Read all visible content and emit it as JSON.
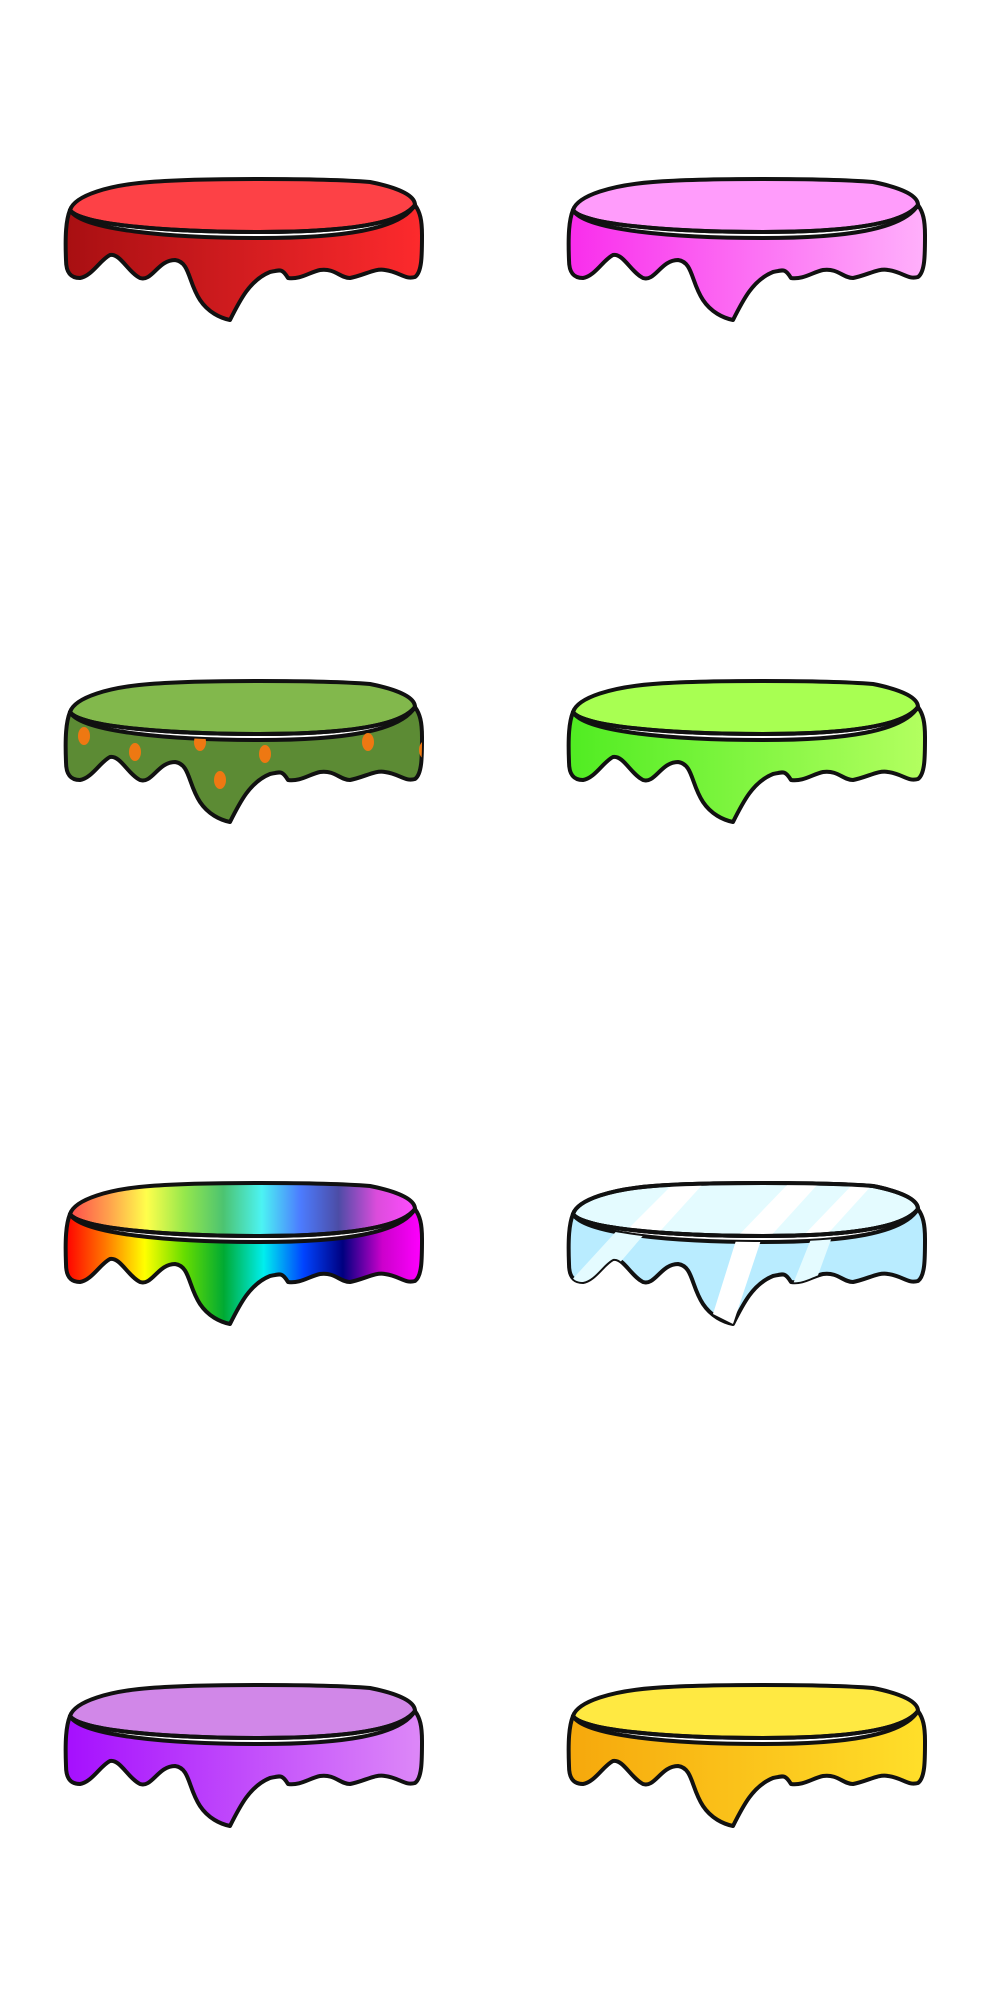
{
  "background": "#ffffff",
  "outline_color": "#111111",
  "items": [
    {
      "name": "tablecloth-red",
      "pattern": "solid",
      "top": "#fd4146",
      "skirt": [
        "#a80f12",
        "#fd2a2d"
      ]
    },
    {
      "name": "tablecloth-pink",
      "pattern": "solid",
      "top": "#ff9cfb",
      "skirt": [
        "#f92dec",
        "#ffb0fb"
      ]
    },
    {
      "name": "tablecloth-green-polka-dot",
      "pattern": "dots",
      "top": "#82b84c",
      "skirt": [
        "#5c8b34",
        "#5c8b34"
      ],
      "dot_color": "#ee7812"
    },
    {
      "name": "tablecloth-lime",
      "pattern": "solid",
      "top": "#a8ff52",
      "skirt": [
        "#50ec22",
        "#b3ff60"
      ]
    },
    {
      "name": "tablecloth-rainbow",
      "pattern": "rainbow",
      "top": "#ffffff",
      "skirt": [
        "#ff0000",
        "#ff00aa"
      ],
      "rainbow_stops": [
        "#ff0000",
        "#ff7700",
        "#ffff00",
        "#66dd00",
        "#00aa33",
        "#00eeee",
        "#0044ff",
        "#000080",
        "#cc00cc",
        "#ff00ff"
      ]
    },
    {
      "name": "tablecloth-glass",
      "pattern": "glass",
      "top": "#e4fbff",
      "skirt": [
        "#b9ecff",
        "#b9ecff"
      ],
      "highlight": "#ffffff"
    },
    {
      "name": "tablecloth-purple",
      "pattern": "solid",
      "top": "#d187e8",
      "skirt": [
        "#a50ffe",
        "#dd88f8"
      ]
    },
    {
      "name": "tablecloth-yellow",
      "pattern": "solid",
      "top": "#ffe942",
      "skirt": [
        "#f6a80c",
        "#ffdf2a"
      ]
    }
  ]
}
